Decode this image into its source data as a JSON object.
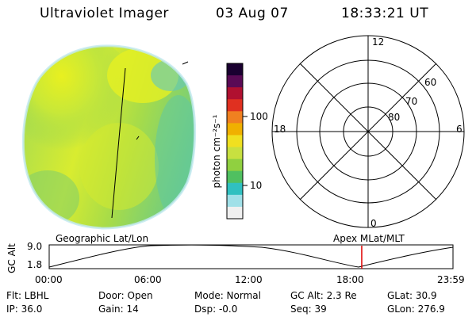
{
  "header": {
    "instrument": "Ultraviolet Imager",
    "date": "03 Aug 07",
    "time": "18:33:21 UT"
  },
  "colorbar": {
    "unit_label": "photon cm⁻²s⁻¹",
    "tick_labels": [
      "100",
      "10"
    ],
    "colors": [
      "#1a0030",
      "#5a0a55",
      "#b01030",
      "#e03020",
      "#f08020",
      "#f0b000",
      "#f0e020",
      "#c8e040",
      "#90d040",
      "#50c060",
      "#30c0c0",
      "#a0e0e8",
      "#f0f0f0"
    ]
  },
  "polar_grid": {
    "mlt_labels": [
      "12",
      "18",
      "6",
      "0"
    ],
    "mlat_labels": [
      "60",
      "70",
      "80"
    ]
  },
  "orbit_plot": {
    "y_axis_label": "GC Alt",
    "y_ticks": [
      "9.0",
      "1.8"
    ],
    "x_ticks": [
      "00:00",
      "06:00",
      "12:00",
      "18:00",
      "23:59"
    ],
    "left_caption": "Geographic Lat/Lon",
    "right_caption": "Apex  MLat/MLT",
    "current_time_fraction": 0.774
  },
  "status": {
    "filter": "Flt: LBHL",
    "ip": "IP: 36.0",
    "door": "Door: Open",
    "gain": "Gain: 14",
    "mode": "Mode: Normal",
    "dsp": "Dsp:    -0.0",
    "gc_alt": "GC Alt: 2.3 Re",
    "seq": "Seq: 39",
    "glat": "GLat:  30.9",
    "glon": "GLon: 276.9"
  }
}
